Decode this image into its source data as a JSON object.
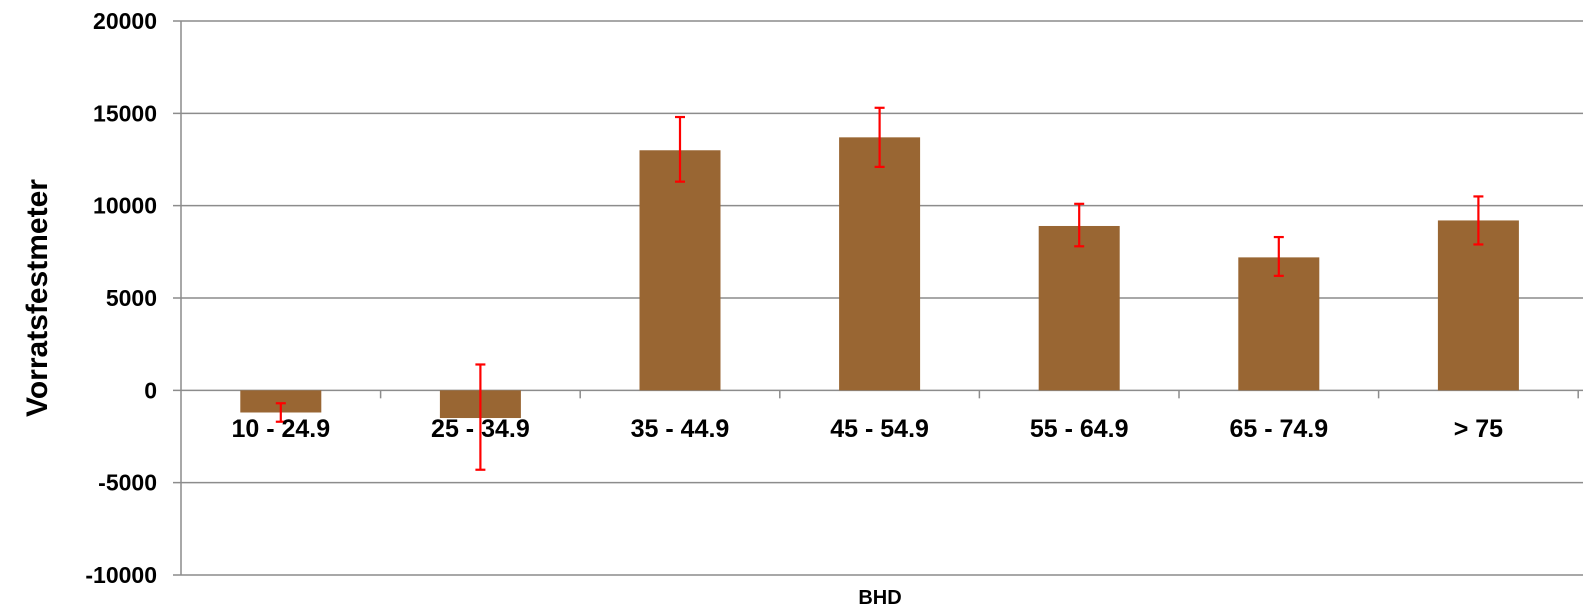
{
  "chart_data": {
    "type": "bar",
    "title": "",
    "xlabel": "BHD",
    "ylabel": "Vorratsfestmeter",
    "ylim": [
      -10000,
      20000
    ],
    "yticks": [
      -10000,
      -5000,
      0,
      5000,
      10000,
      15000,
      20000
    ],
    "grid": true,
    "legend": "none",
    "categories": [
      "10 - 24.9",
      "25 - 34.9",
      "35 - 44.9",
      "45 - 54.9",
      "55 - 64.9",
      "65 - 74.9",
      "> 75"
    ],
    "values": [
      -1200,
      -1500,
      13000,
      13700,
      8900,
      7200,
      9200
    ],
    "error_low": [
      -1700,
      -4300,
      11300,
      12100,
      7800,
      6200,
      7900
    ],
    "error_high": [
      -700,
      1400,
      14800,
      15300,
      10100,
      8300,
      10500
    ],
    "colors": {
      "bar": "#996633",
      "error_bar": "#ff0000",
      "grid": "#8c8c8c"
    }
  }
}
